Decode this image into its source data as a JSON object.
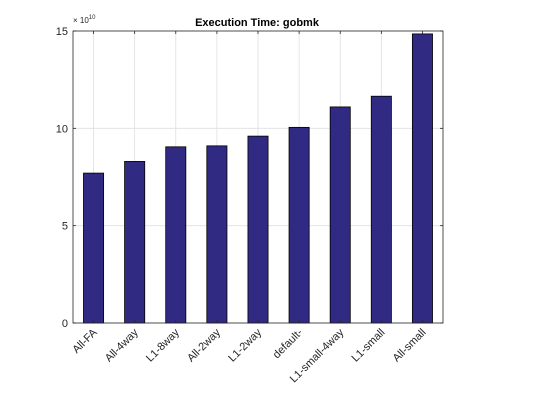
{
  "chart_data": {
    "type": "bar",
    "title": "Execution Time: gobmk",
    "categories": [
      "All-FA",
      "All-4way",
      "L1-8way",
      "All-2way",
      "L1-2way",
      "default-",
      "L1-small-4way",
      "L1-small",
      "All-small"
    ],
    "values": [
      77000000000.0,
      83000000000.0,
      90500000000.0,
      91000000000.0,
      96000000000.0,
      100500000000.0,
      111000000000.0,
      116500000000.0,
      148500000000.0
    ],
    "ylim": [
      0,
      150000000000.0
    ],
    "yticks": [
      0,
      5,
      10,
      15
    ],
    "y_exponent_label": "× 10",
    "y_exponent_power": "10",
    "grid": true,
    "bar_color": "#312a83",
    "xlabel": "",
    "ylabel": ""
  }
}
